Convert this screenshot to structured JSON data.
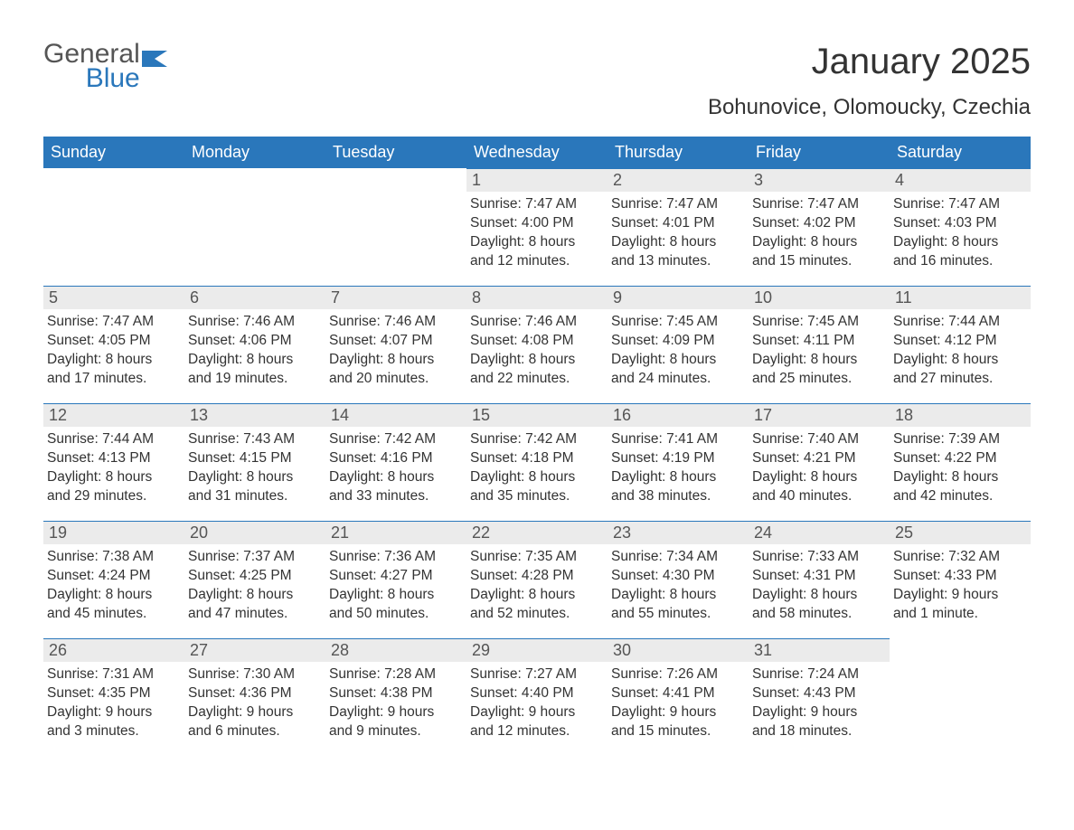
{
  "colors": {
    "accent": "#2a77bb",
    "header_bg": "#2a77bb",
    "header_text": "#ffffff",
    "daynum_bg": "#ebebeb",
    "daynum_text": "#555555",
    "body_text": "#333333",
    "page_bg": "#ffffff",
    "logo_gray": "#555555",
    "logo_blue": "#2a77bb"
  },
  "logo": {
    "line1": "General",
    "line2": "Blue"
  },
  "title": {
    "month": "January 2025",
    "location": "Bohunovice, Olomoucky, Czechia"
  },
  "weekdays": [
    "Sunday",
    "Monday",
    "Tuesday",
    "Wednesday",
    "Thursday",
    "Friday",
    "Saturday"
  ],
  "calendar": {
    "type": "table",
    "columns": 7,
    "rows": 5,
    "cell_font_size_pt": 12,
    "header_font_size_pt": 14,
    "title_font_size_pt": 30,
    "subtitle_font_size_pt": 18
  },
  "weeks": [
    [
      {
        "empty": true
      },
      {
        "empty": true
      },
      {
        "empty": true
      },
      {
        "num": "1",
        "sunrise": "Sunrise: 7:47 AM",
        "sunset": "Sunset: 4:00 PM",
        "dl1": "Daylight: 8 hours",
        "dl2": "and 12 minutes."
      },
      {
        "num": "2",
        "sunrise": "Sunrise: 7:47 AM",
        "sunset": "Sunset: 4:01 PM",
        "dl1": "Daylight: 8 hours",
        "dl2": "and 13 minutes."
      },
      {
        "num": "3",
        "sunrise": "Sunrise: 7:47 AM",
        "sunset": "Sunset: 4:02 PM",
        "dl1": "Daylight: 8 hours",
        "dl2": "and 15 minutes."
      },
      {
        "num": "4",
        "sunrise": "Sunrise: 7:47 AM",
        "sunset": "Sunset: 4:03 PM",
        "dl1": "Daylight: 8 hours",
        "dl2": "and 16 minutes."
      }
    ],
    [
      {
        "num": "5",
        "sunrise": "Sunrise: 7:47 AM",
        "sunset": "Sunset: 4:05 PM",
        "dl1": "Daylight: 8 hours",
        "dl2": "and 17 minutes."
      },
      {
        "num": "6",
        "sunrise": "Sunrise: 7:46 AM",
        "sunset": "Sunset: 4:06 PM",
        "dl1": "Daylight: 8 hours",
        "dl2": "and 19 minutes."
      },
      {
        "num": "7",
        "sunrise": "Sunrise: 7:46 AM",
        "sunset": "Sunset: 4:07 PM",
        "dl1": "Daylight: 8 hours",
        "dl2": "and 20 minutes."
      },
      {
        "num": "8",
        "sunrise": "Sunrise: 7:46 AM",
        "sunset": "Sunset: 4:08 PM",
        "dl1": "Daylight: 8 hours",
        "dl2": "and 22 minutes."
      },
      {
        "num": "9",
        "sunrise": "Sunrise: 7:45 AM",
        "sunset": "Sunset: 4:09 PM",
        "dl1": "Daylight: 8 hours",
        "dl2": "and 24 minutes."
      },
      {
        "num": "10",
        "sunrise": "Sunrise: 7:45 AM",
        "sunset": "Sunset: 4:11 PM",
        "dl1": "Daylight: 8 hours",
        "dl2": "and 25 minutes."
      },
      {
        "num": "11",
        "sunrise": "Sunrise: 7:44 AM",
        "sunset": "Sunset: 4:12 PM",
        "dl1": "Daylight: 8 hours",
        "dl2": "and 27 minutes."
      }
    ],
    [
      {
        "num": "12",
        "sunrise": "Sunrise: 7:44 AM",
        "sunset": "Sunset: 4:13 PM",
        "dl1": "Daylight: 8 hours",
        "dl2": "and 29 minutes."
      },
      {
        "num": "13",
        "sunrise": "Sunrise: 7:43 AM",
        "sunset": "Sunset: 4:15 PM",
        "dl1": "Daylight: 8 hours",
        "dl2": "and 31 minutes."
      },
      {
        "num": "14",
        "sunrise": "Sunrise: 7:42 AM",
        "sunset": "Sunset: 4:16 PM",
        "dl1": "Daylight: 8 hours",
        "dl2": "and 33 minutes."
      },
      {
        "num": "15",
        "sunrise": "Sunrise: 7:42 AM",
        "sunset": "Sunset: 4:18 PM",
        "dl1": "Daylight: 8 hours",
        "dl2": "and 35 minutes."
      },
      {
        "num": "16",
        "sunrise": "Sunrise: 7:41 AM",
        "sunset": "Sunset: 4:19 PM",
        "dl1": "Daylight: 8 hours",
        "dl2": "and 38 minutes."
      },
      {
        "num": "17",
        "sunrise": "Sunrise: 7:40 AM",
        "sunset": "Sunset: 4:21 PM",
        "dl1": "Daylight: 8 hours",
        "dl2": "and 40 minutes."
      },
      {
        "num": "18",
        "sunrise": "Sunrise: 7:39 AM",
        "sunset": "Sunset: 4:22 PM",
        "dl1": "Daylight: 8 hours",
        "dl2": "and 42 minutes."
      }
    ],
    [
      {
        "num": "19",
        "sunrise": "Sunrise: 7:38 AM",
        "sunset": "Sunset: 4:24 PM",
        "dl1": "Daylight: 8 hours",
        "dl2": "and 45 minutes."
      },
      {
        "num": "20",
        "sunrise": "Sunrise: 7:37 AM",
        "sunset": "Sunset: 4:25 PM",
        "dl1": "Daylight: 8 hours",
        "dl2": "and 47 minutes."
      },
      {
        "num": "21",
        "sunrise": "Sunrise: 7:36 AM",
        "sunset": "Sunset: 4:27 PM",
        "dl1": "Daylight: 8 hours",
        "dl2": "and 50 minutes."
      },
      {
        "num": "22",
        "sunrise": "Sunrise: 7:35 AM",
        "sunset": "Sunset: 4:28 PM",
        "dl1": "Daylight: 8 hours",
        "dl2": "and 52 minutes."
      },
      {
        "num": "23",
        "sunrise": "Sunrise: 7:34 AM",
        "sunset": "Sunset: 4:30 PM",
        "dl1": "Daylight: 8 hours",
        "dl2": "and 55 minutes."
      },
      {
        "num": "24",
        "sunrise": "Sunrise: 7:33 AM",
        "sunset": "Sunset: 4:31 PM",
        "dl1": "Daylight: 8 hours",
        "dl2": "and 58 minutes."
      },
      {
        "num": "25",
        "sunrise": "Sunrise: 7:32 AM",
        "sunset": "Sunset: 4:33 PM",
        "dl1": "Daylight: 9 hours",
        "dl2": "and 1 minute."
      }
    ],
    [
      {
        "num": "26",
        "sunrise": "Sunrise: 7:31 AM",
        "sunset": "Sunset: 4:35 PM",
        "dl1": "Daylight: 9 hours",
        "dl2": "and 3 minutes."
      },
      {
        "num": "27",
        "sunrise": "Sunrise: 7:30 AM",
        "sunset": "Sunset: 4:36 PM",
        "dl1": "Daylight: 9 hours",
        "dl2": "and 6 minutes."
      },
      {
        "num": "28",
        "sunrise": "Sunrise: 7:28 AM",
        "sunset": "Sunset: 4:38 PM",
        "dl1": "Daylight: 9 hours",
        "dl2": "and 9 minutes."
      },
      {
        "num": "29",
        "sunrise": "Sunrise: 7:27 AM",
        "sunset": "Sunset: 4:40 PM",
        "dl1": "Daylight: 9 hours",
        "dl2": "and 12 minutes."
      },
      {
        "num": "30",
        "sunrise": "Sunrise: 7:26 AM",
        "sunset": "Sunset: 4:41 PM",
        "dl1": "Daylight: 9 hours",
        "dl2": "and 15 minutes."
      },
      {
        "num": "31",
        "sunrise": "Sunrise: 7:24 AM",
        "sunset": "Sunset: 4:43 PM",
        "dl1": "Daylight: 9 hours",
        "dl2": "and 18 minutes."
      },
      {
        "empty": true
      }
    ]
  ]
}
